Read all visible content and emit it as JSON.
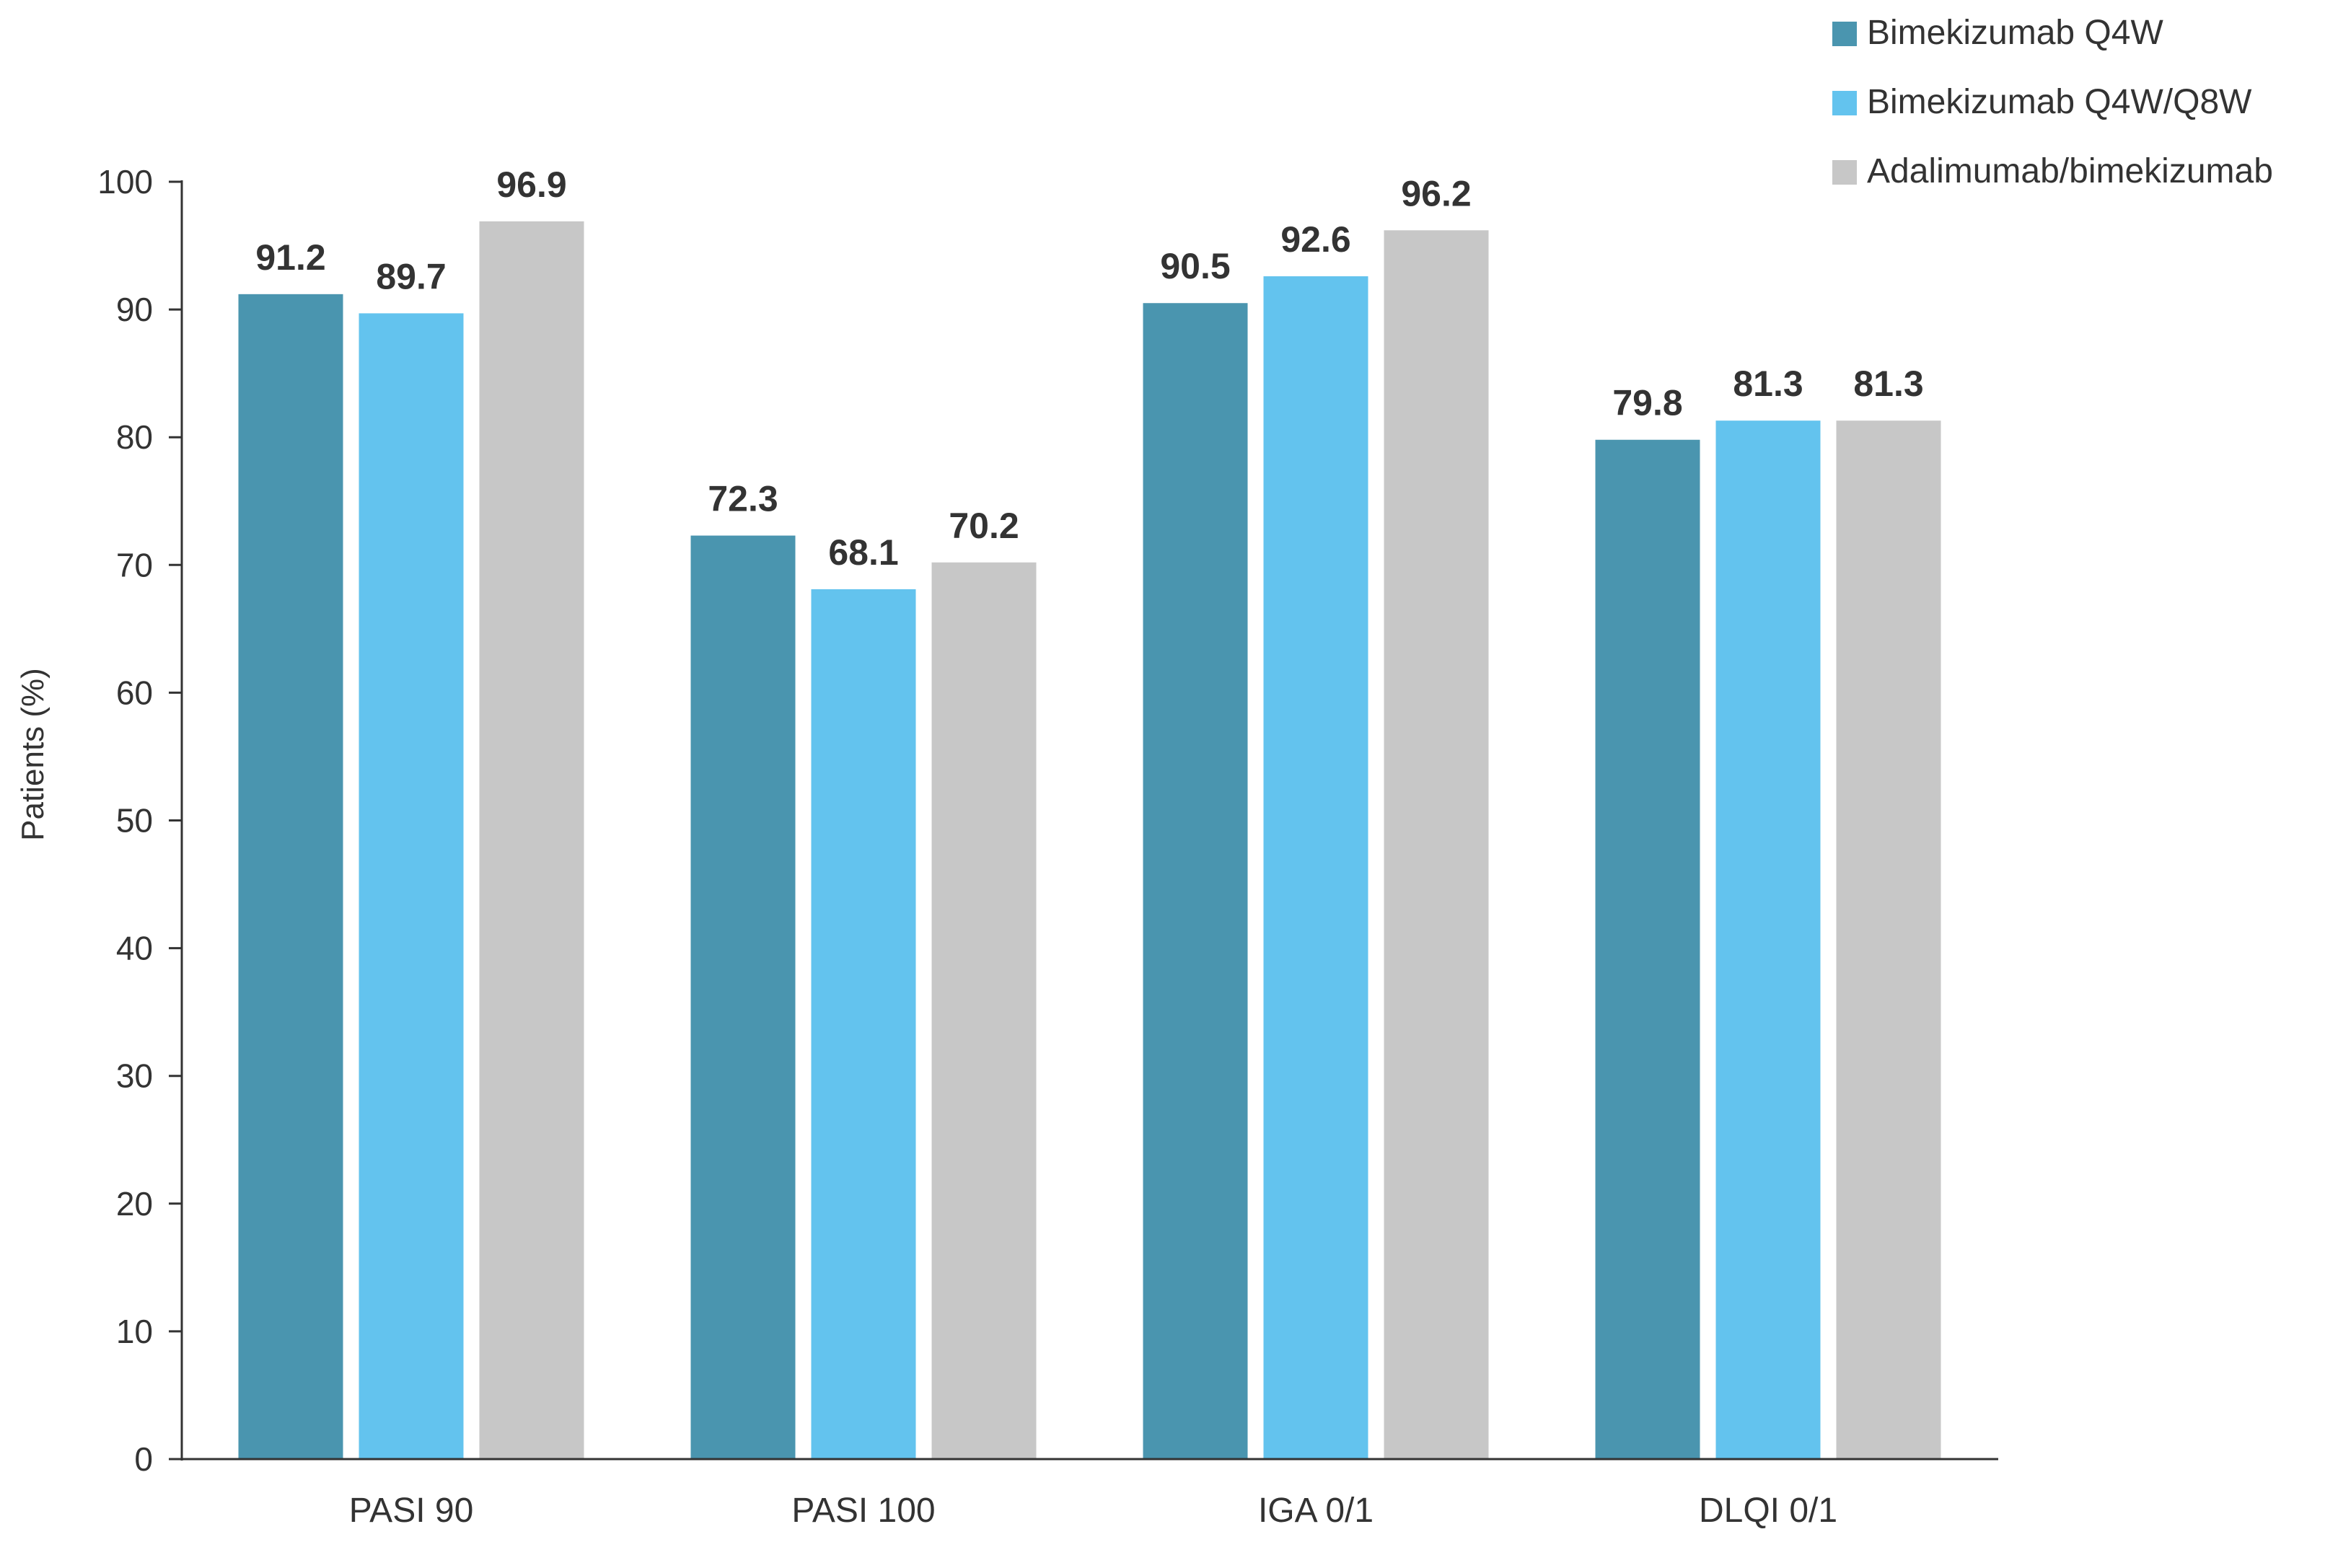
{
  "chart_data": {
    "type": "bar",
    "title": "",
    "xlabel": "",
    "ylabel": "Patients (%)",
    "ylim": [
      0,
      100
    ],
    "yticks": [
      "0",
      "10",
      "20",
      "30",
      "40",
      "50",
      "60",
      "70",
      "80",
      "90",
      "100"
    ],
    "grid": false,
    "legend_position": "top-right",
    "categories": [
      "PASI 90",
      "PASI 100",
      "IGA 0/1",
      "DLQI 0/1"
    ],
    "series": [
      {
        "name": "Bimekizumab Q4W",
        "color": "#4A95AF",
        "values": [
          91.2,
          72.3,
          90.5,
          79.8
        ],
        "labels": [
          "91.2",
          "72.3",
          "90.5",
          "79.8"
        ]
      },
      {
        "name": "Bimekizumab Q4W/Q8W",
        "color": "#63C3EE",
        "values": [
          89.7,
          68.1,
          92.6,
          81.3
        ],
        "labels": [
          "89.7",
          "68.1",
          "92.6",
          "81.3"
        ]
      },
      {
        "name": "Adalimumab/bimekizumab",
        "color": "#C7C7C7",
        "values": [
          96.9,
          70.2,
          96.2,
          81.3
        ],
        "labels": [
          "96.9",
          "70.2",
          "96.2",
          "81.3"
        ]
      }
    ]
  }
}
